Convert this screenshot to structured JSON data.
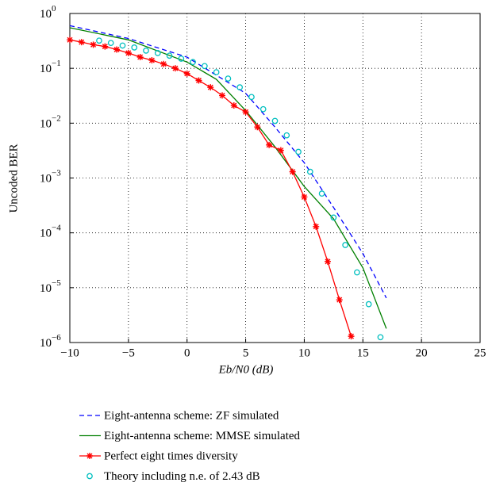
{
  "chart_data": {
    "type": "line",
    "xlabel": "Eb/N0 (dB)",
    "ylabel": "Uncoded BER",
    "yscale": "log",
    "grid": true,
    "legend": "bottom",
    "xlim": [
      -10,
      25
    ],
    "ylim": [
      1e-06,
      1
    ],
    "xticks": [
      {
        "value": -10,
        "label": "−10"
      },
      {
        "value": -5,
        "label": "−5"
      },
      0,
      5,
      10,
      15,
      20,
      25
    ],
    "yticks": [
      {
        "value": 1e-06,
        "label": "10",
        "exponent": "−6"
      },
      {
        "value": 1e-05,
        "label": "10",
        "exponent": "−5"
      },
      {
        "value": 0.0001,
        "label": "10",
        "exponent": "−4"
      },
      {
        "value": 0.001,
        "label": "10",
        "exponent": "−3"
      },
      {
        "value": 0.01,
        "label": "10",
        "exponent": "−2"
      },
      {
        "value": 0.1,
        "label": "10",
        "exponent": "−1"
      },
      {
        "value": 1,
        "label": "10",
        "exponent": "0"
      }
    ],
    "series": [
      {
        "name": "Eight-antenna scheme: ZF simulated",
        "color": "#0000ff",
        "line_style": "dashed",
        "marker": "none",
        "x": [
          -10,
          -5,
          0,
          5,
          7.5,
          10,
          12.5,
          15,
          17
        ],
        "values": [
          0.6,
          0.35,
          0.16,
          0.035,
          0.0085,
          0.0019,
          0.00029,
          4.2e-05,
          6.5e-06
        ]
      },
      {
        "name": "Eight-antenna scheme: MMSE simulated",
        "color": "#008000",
        "line_style": "solid",
        "marker": "none",
        "x": [
          -10,
          -5,
          0,
          2.5,
          5,
          7.5,
          10,
          12.5,
          15,
          17
        ],
        "values": [
          0.55,
          0.33,
          0.13,
          0.063,
          0.017,
          0.0037,
          0.0007,
          0.00018,
          2.3e-05,
          1.8e-06
        ]
      },
      {
        "name": "Perfect eight times diversity",
        "color": "#ff0000",
        "line_style": "solid",
        "marker": "star",
        "x": [
          -10,
          -9,
          -8,
          -7,
          -6,
          -5,
          -4,
          -3,
          -2,
          -1,
          0,
          1,
          2,
          3,
          4,
          5,
          6,
          7,
          8,
          9,
          10,
          11,
          12,
          13,
          14
        ],
        "values": [
          0.33,
          0.3,
          0.27,
          0.25,
          0.22,
          0.19,
          0.16,
          0.14,
          0.12,
          0.1,
          0.08,
          0.06,
          0.045,
          0.032,
          0.021,
          0.016,
          0.0085,
          0.004,
          0.0032,
          0.0013,
          0.00045,
          0.00013,
          3e-05,
          6e-06,
          1.3e-06
        ]
      },
      {
        "name": "Theory including n.e. of 2.43 dB",
        "color": "#00bfbf",
        "line_style": "none",
        "marker": "circle",
        "x": [
          -7.5,
          -6.5,
          -5.5,
          -4.5,
          -3.5,
          -2.5,
          -1.5,
          -0.5,
          0.5,
          1.5,
          2.5,
          3.5,
          4.5,
          5.5,
          6.5,
          7.5,
          8.5,
          9.5,
          10.5,
          11.5,
          12.5,
          13.5,
          14.5,
          15.5,
          16.5
        ],
        "values": [
          0.32,
          0.29,
          0.26,
          0.24,
          0.21,
          0.19,
          0.17,
          0.15,
          0.13,
          0.11,
          0.085,
          0.065,
          0.045,
          0.03,
          0.018,
          0.011,
          0.006,
          0.003,
          0.0013,
          0.00052,
          0.00019,
          6e-05,
          1.9e-05,
          5e-06,
          1.25e-06
        ]
      }
    ]
  }
}
